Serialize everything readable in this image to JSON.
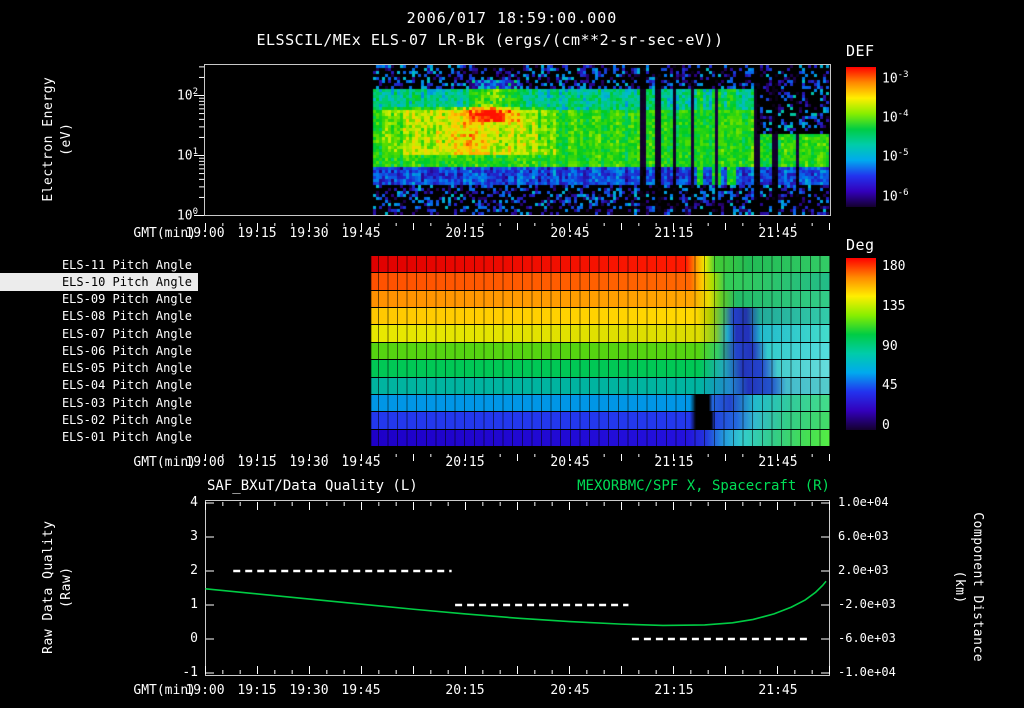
{
  "header": {
    "timestamp": "2006/017 18:59:00.000",
    "title": "ELSSCIL/MEx ELS-07 LR-Bk (ergs/(cm**2-sr-sec-eV))"
  },
  "time_axis": {
    "label": "GMT(min)",
    "start": "19:00",
    "end": "22:00",
    "duration_minutes": 180,
    "tick_labels": [
      "19:00",
      "19:15",
      "19:30",
      "19:45",
      "20:15",
      "20:45",
      "21:15",
      "21:45"
    ],
    "tick_minutes": [
      0,
      15,
      30,
      45,
      75,
      105,
      135,
      165
    ],
    "major_tick_step": 15,
    "minor_tick_step": 5
  },
  "spectrogram": {
    "ylabel_line1": "Electron Energy",
    "ylabel_line2": "(eV)",
    "ytick_base": "10",
    "ytick_exponents": [
      "2",
      "1",
      "0"
    ],
    "colorbar_title": "DEF",
    "colorbar_exponents": [
      "-3",
      "-4",
      "-5",
      "-6"
    ]
  },
  "pitch": {
    "colorbar_title": "Deg",
    "colorbar_ticks": [
      "180",
      "135",
      "90",
      "45",
      "0"
    ],
    "rows": [
      {
        "label": "ELS-11 Pitch Angle",
        "highlight": false,
        "stops": [
          [
            0,
            "#000000"
          ],
          [
            26.5,
            "#000000"
          ],
          [
            26.7,
            "#e00000"
          ],
          [
            77,
            "#ff1a00"
          ],
          [
            78.6,
            "#ff9900"
          ],
          [
            80,
            "#eeee00"
          ],
          [
            81.6,
            "#44cc33"
          ],
          [
            87,
            "#22bb55"
          ],
          [
            100,
            "#33cc66"
          ]
        ]
      },
      {
        "label": "ELS-10 Pitch Angle",
        "highlight": true,
        "stops": [
          [
            0,
            "#000000"
          ],
          [
            26.5,
            "#000000"
          ],
          [
            26.7,
            "#ff5100"
          ],
          [
            77.6,
            "#ff6600"
          ],
          [
            79.6,
            "#ffcc00"
          ],
          [
            81.2,
            "#aadd00"
          ],
          [
            83.3,
            "#33cc55"
          ],
          [
            100,
            "#22bb88"
          ]
        ]
      },
      {
        "label": "ELS-09 Pitch Angle",
        "highlight": false,
        "stops": [
          [
            0,
            "#000000"
          ],
          [
            26.5,
            "#000000"
          ],
          [
            26.7,
            "#ff9100"
          ],
          [
            78,
            "#ffa500"
          ],
          [
            80.6,
            "#e8dd00"
          ],
          [
            82.6,
            "#66cc22"
          ],
          [
            85,
            "#22bb66"
          ],
          [
            100,
            "#33cc88"
          ]
        ]
      },
      {
        "label": "ELS-08 Pitch Angle",
        "highlight": false,
        "stops": [
          [
            0,
            "#000000"
          ],
          [
            26.5,
            "#000000"
          ],
          [
            26.7,
            "#ffc800"
          ],
          [
            78.6,
            "#ffd800"
          ],
          [
            81,
            "#aacc00"
          ],
          [
            83,
            "#44bb66"
          ],
          [
            84.6,
            "#2340cc"
          ],
          [
            86.6,
            "#2335aa"
          ],
          [
            88.8,
            "#22aa99"
          ],
          [
            100,
            "#33ccaa"
          ]
        ]
      },
      {
        "label": "ELS-07 Pitch Angle",
        "highlight": false,
        "stops": [
          [
            0,
            "#000000"
          ],
          [
            26.5,
            "#000000"
          ],
          [
            26.7,
            "#e8e800"
          ],
          [
            79,
            "#dcdc00"
          ],
          [
            81.6,
            "#88cc22"
          ],
          [
            83.6,
            "#22aacc"
          ],
          [
            85,
            "#2333bb"
          ],
          [
            87,
            "#2333bb"
          ],
          [
            89,
            "#22bbcc"
          ],
          [
            100,
            "#44ddcc"
          ]
        ]
      },
      {
        "label": "ELS-06 Pitch Angle",
        "highlight": false,
        "stops": [
          [
            0,
            "#000000"
          ],
          [
            26.5,
            "#000000"
          ],
          [
            26.7,
            "#55d411"
          ],
          [
            79,
            "#55d411"
          ],
          [
            82,
            "#33cc66"
          ],
          [
            85,
            "#2344cc"
          ],
          [
            87.6,
            "#2333bb"
          ],
          [
            90,
            "#33cccc"
          ],
          [
            100,
            "#55dddd"
          ]
        ]
      },
      {
        "label": "ELS-05 Pitch Angle",
        "highlight": false,
        "stops": [
          [
            0,
            "#000000"
          ],
          [
            26.5,
            "#000000"
          ],
          [
            26.7,
            "#00c855"
          ],
          [
            79,
            "#00c855"
          ],
          [
            83,
            "#22aabb"
          ],
          [
            86,
            "#2333bb"
          ],
          [
            89,
            "#2344cc"
          ],
          [
            91.6,
            "#44cccc"
          ],
          [
            100,
            "#66dddd"
          ]
        ]
      },
      {
        "label": "ELS-04 Pitch Angle",
        "highlight": false,
        "stops": [
          [
            0,
            "#000000"
          ],
          [
            26.5,
            "#000000"
          ],
          [
            26.7,
            "#00b4a0"
          ],
          [
            79,
            "#00b4a0"
          ],
          [
            84,
            "#2288cc"
          ],
          [
            87,
            "#2333bb"
          ],
          [
            90.6,
            "#2355cc"
          ],
          [
            93,
            "#44bbcc"
          ],
          [
            100,
            "#55cccc"
          ]
        ]
      },
      {
        "label": "ELS-03 Pitch Angle",
        "highlight": false,
        "stops": [
          [
            0,
            "#000000"
          ],
          [
            26.5,
            "#000000"
          ],
          [
            26.7,
            "#0096e6"
          ],
          [
            77.6,
            "#0096e6"
          ],
          [
            78.6,
            "#000000"
          ],
          [
            80.6,
            "#000000"
          ],
          [
            81.2,
            "#2366dd"
          ],
          [
            84,
            "#2344cc"
          ],
          [
            88,
            "#22bbcc"
          ],
          [
            94,
            "#33cc99"
          ],
          [
            100,
            "#44dd88"
          ]
        ]
      },
      {
        "label": "ELS-02 Pitch Angle",
        "highlight": false,
        "stops": [
          [
            0,
            "#000000"
          ],
          [
            26.5,
            "#000000"
          ],
          [
            26.7,
            "#2338ee"
          ],
          [
            77.6,
            "#2338ee"
          ],
          [
            78.6,
            "#000000"
          ],
          [
            81,
            "#000000"
          ],
          [
            81.6,
            "#2344dd"
          ],
          [
            85,
            "#2366dd"
          ],
          [
            88,
            "#33bbcc"
          ],
          [
            93,
            "#33cc88"
          ],
          [
            100,
            "#44dd66"
          ]
        ]
      },
      {
        "label": "ELS-01 Pitch Angle",
        "highlight": false,
        "stops": [
          [
            0,
            "#000000"
          ],
          [
            26.5,
            "#000000"
          ],
          [
            26.7,
            "#1e00c8"
          ],
          [
            77,
            "#2311dd"
          ],
          [
            80,
            "#2333dd"
          ],
          [
            83,
            "#2399dd"
          ],
          [
            86,
            "#33cccc"
          ],
          [
            91,
            "#33cc88"
          ],
          [
            96,
            "#44dd55"
          ],
          [
            100,
            "#55ee44"
          ]
        ]
      }
    ]
  },
  "bottom": {
    "title_left": "SAF_BXuT/Data Quality (L)",
    "title_right": "MEXORBMC/SPF X, Spacecraft (R)",
    "ylabel_left_line1": "Raw Data Quality",
    "ylabel_left_line2": "(Raw)",
    "ylabel_right_line1": "Component Distance",
    "ylabel_right_line2": "(km)",
    "left_ticks": [
      "4",
      "3",
      "2",
      "1",
      "0",
      "-1"
    ],
    "right_ticks": [
      "1.0e+04",
      "6.0e+03",
      "2.0e+03",
      "-2.0e+03",
      "-6.0e+03",
      "-1.0e+04"
    ]
  },
  "colors": {
    "background": "#000000",
    "text": "#ffffff",
    "green_series": "#00cc44",
    "title_right_green": "#00dd55",
    "rainbow": [
      "#ff0000",
      "#ff8800",
      "#ffee00",
      "#88ee00",
      "#00cc44",
      "#00ccaa",
      "#00aaee",
      "#2233ee",
      "#3300bb",
      "#14002e"
    ]
  },
  "chart_data": [
    {
      "type": "heatmap",
      "name": "electron-energy-spectrogram",
      "title": "ELSSCIL/MEx ELS-07 LR-Bk",
      "units": "ergs/(cm**2-sr-sec-eV)",
      "x_axis": {
        "label": "GMT(min)",
        "range": [
          "19:00",
          "22:00"
        ],
        "ticks": [
          "19:00",
          "19:15",
          "19:30",
          "19:45",
          "20:15",
          "20:45",
          "21:15",
          "21:45"
        ]
      },
      "y_axis": {
        "label": "Electron Energy (eV)",
        "scale": "log",
        "range": [
          1,
          300
        ]
      },
      "color_axis": {
        "label": "DEF",
        "scale": "log",
        "range": [
          1e-06,
          0.001
        ]
      },
      "data_start": "19:48",
      "features": [
        "no data before 19:48",
        "bright green flux band between ~7 and ~70 eV",
        "blue band 3-6 eV",
        "yellow-orange enhancement 19:50-20:40 strongest near 20:10",
        "high-energy orange feature near 20:20 up to ~200 eV",
        "intermittent vertical dropouts 21:05-21:25 and near 21:40",
        "dark speckled region above ~25 eV after 21:40"
      ],
      "render": {
        "data_start_frac": 0.267,
        "colormap": [
          [
            0,
            "#000000"
          ],
          [
            0.05,
            "#14002e"
          ],
          [
            0.12,
            "#2a0080"
          ],
          [
            0.2,
            "#2222cc"
          ],
          [
            0.3,
            "#0077ee"
          ],
          [
            0.38,
            "#00bbcc"
          ],
          [
            0.46,
            "#00cc77"
          ],
          [
            0.55,
            "#00cc22"
          ],
          [
            0.65,
            "#55dd00"
          ],
          [
            0.75,
            "#ccee00"
          ],
          [
            0.84,
            "#ffcc00"
          ],
          [
            0.92,
            "#ff7700"
          ],
          [
            1,
            "#ff1100"
          ]
        ],
        "bands": [
          {
            "logE": [
              0.0,
              0.5
            ],
            "value": 0.1,
            "speckle": true
          },
          {
            "logE": [
              0.5,
              0.82
            ],
            "value": 0.24
          },
          {
            "logE": [
              0.82,
              1.78
            ],
            "value": 0.58
          },
          {
            "logE": [
              1.78,
              2.15
            ],
            "value": 0.44
          },
          {
            "logE": [
              2.15,
              2.51
            ],
            "value": 0.12,
            "speckle": true
          }
        ],
        "enhancements": [
          {
            "t": [
              0.28,
              0.56
            ],
            "logE": [
              1.05,
              1.8
            ],
            "boost": 0.24
          },
          {
            "t": [
              0.42,
              0.5
            ],
            "logE": [
              1.6,
              2.3
            ],
            "boost": 0.26
          }
        ],
        "plumes": [
          [
            0.785,
            0.795
          ],
          [
            0.81,
            0.825
          ],
          [
            0.835,
            0.845
          ]
        ],
        "dropouts": [
          [
            0.695,
            0.705
          ],
          [
            0.72,
            0.728
          ],
          [
            0.748,
            0.753
          ],
          [
            0.878,
            0.887
          ],
          [
            0.905,
            0.912
          ]
        ],
        "random_dropouts_after": 0.7,
        "dark_corner_after": 0.88
      }
    },
    {
      "type": "heatmap",
      "name": "pitch-angle-panel",
      "rows": [
        "ELS-11",
        "ELS-10",
        "ELS-09",
        "ELS-08",
        "ELS-07",
        "ELS-06",
        "ELS-05",
        "ELS-04",
        "ELS-03",
        "ELS-02",
        "ELS-01"
      ],
      "color_axis": {
        "label": "Deg",
        "range": [
          0,
          180
        ],
        "ticks": [
          180,
          135,
          90,
          45,
          0
        ]
      },
      "data_start": "19:48",
      "nominal_pitch_angles_deg": [
        171,
        155,
        139,
        122,
        106,
        90,
        74,
        57,
        41,
        25,
        8
      ],
      "note": "constant anode pitch angles from 19:48 to ~21:20 (180 deg at top row to 0 deg at bottom row); spacecraft attitude change after ~21:20 sweeps all anodes toward 45-110 deg"
    },
    {
      "type": "line",
      "name": "quality-and-distance",
      "titles": {
        "left": "SAF_BXuT/Data Quality (L)",
        "right": "MEXORBMC/SPF X, Spacecraft (R)"
      },
      "x_axis": {
        "label": "GMT(min)",
        "range": [
          "19:00",
          "22:00"
        ]
      },
      "left_axis": {
        "label": "Raw Data Quality (Raw)",
        "range": [
          -1,
          4
        ],
        "ticks": [
          4,
          3,
          2,
          1,
          0,
          -1
        ]
      },
      "right_axis": {
        "label": "Component Distance (km)",
        "range": [
          -10000,
          10000
        ],
        "ticks": [
          10000,
          6000,
          2000,
          -2000,
          -6000,
          -10000
        ]
      },
      "series": [
        {
          "name": "Raw Data Quality",
          "axis": "left",
          "style": "dashed",
          "color": "#ffffff",
          "segments": [
            {
              "value": 2,
              "from": "19:08",
              "to": "20:11"
            },
            {
              "value": 1,
              "from": "20:12",
              "to": "21:02"
            },
            {
              "value": 0,
              "from": "21:03",
              "to": "21:54"
            }
          ]
        },
        {
          "name": "Spacecraft X Component Distance",
          "axis": "right",
          "style": "solid",
          "color": "#00cc44",
          "points_minutes": [
            0,
            15,
            30,
            45,
            60,
            75,
            90,
            105,
            120,
            132,
            144,
            152,
            158,
            164,
            169,
            173,
            176,
            178,
            179
          ],
          "points_km": [
            -100,
            -700,
            -1300,
            -1900,
            -2500,
            -3050,
            -3550,
            -3950,
            -4250,
            -4400,
            -4350,
            -4100,
            -3700,
            -3050,
            -2250,
            -1400,
            -500,
            300,
            800
          ]
        }
      ]
    }
  ]
}
